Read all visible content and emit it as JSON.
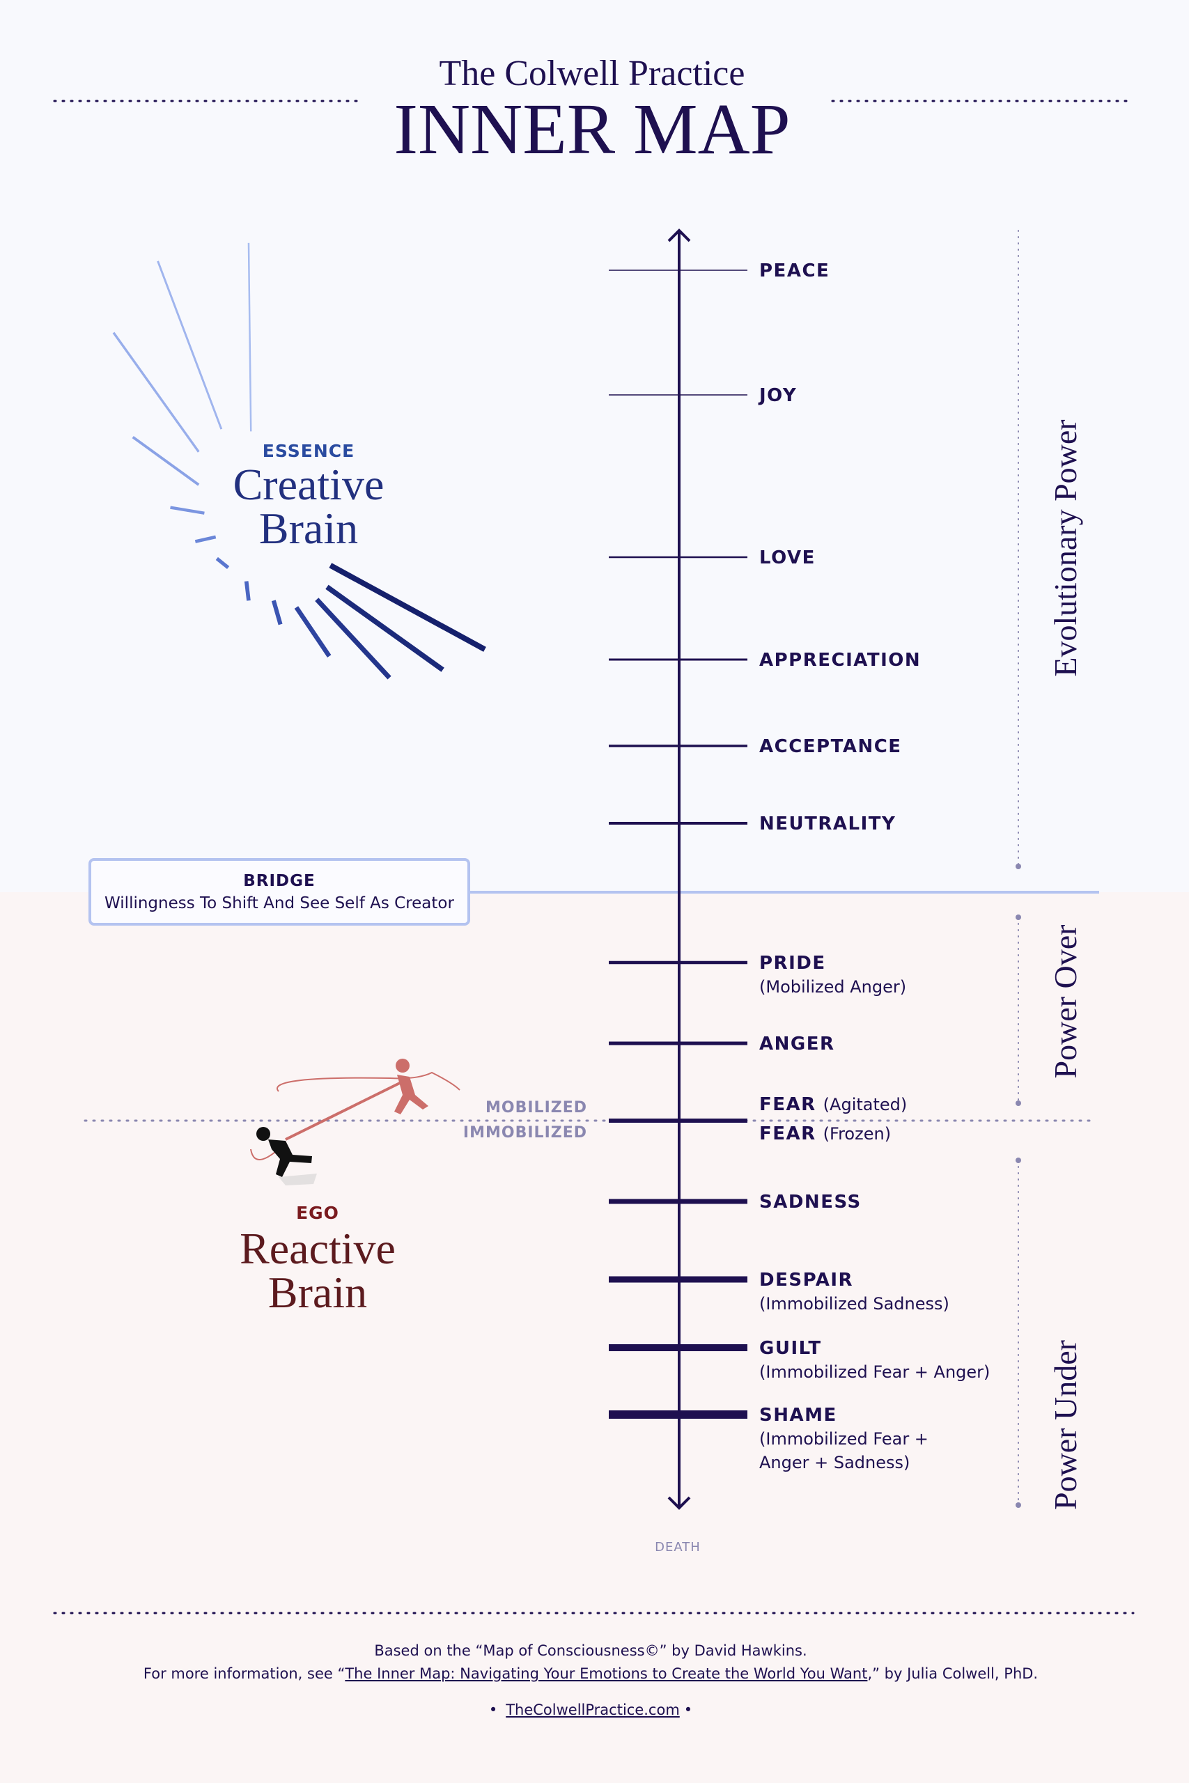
{
  "header": {
    "subtitle": "The Colwell Practice",
    "title": "INNER MAP"
  },
  "essence": {
    "label": "ESSENCE",
    "title_lines": [
      "Creative",
      "Brain"
    ]
  },
  "bridge": {
    "label": "BRIDGE",
    "text": "Willingness To Shift And See Self As Creator"
  },
  "ego": {
    "label": "EGO",
    "title_lines": [
      "Reactive",
      "Brain"
    ]
  },
  "levels": [
    {
      "name": "PEACE"
    },
    {
      "name": "JOY"
    },
    {
      "name": "LOVE"
    },
    {
      "name": "APPRECIATION"
    },
    {
      "name": "ACCEPTANCE"
    },
    {
      "name": "NEUTRALITY"
    },
    {
      "name": "PRIDE",
      "note_lines": [
        "(Mobilized Anger)"
      ]
    },
    {
      "name": "ANGER"
    },
    {
      "name": "FEAR",
      "note_lines": [
        "(Agitated)"
      ]
    },
    {
      "name": "FEAR",
      "note_lines": [
        "(Frozen)"
      ]
    },
    {
      "name": "SADNESS"
    },
    {
      "name": "DESPAIR",
      "note_lines": [
        "(Immobilized Sadness)"
      ]
    },
    {
      "name": "GUILT",
      "note_lines": [
        "(Immobilized Fear + Anger)"
      ]
    },
    {
      "name": "SHAME",
      "note_lines": [
        "(Immobilized Fear +",
        "Anger + Sadness)"
      ]
    }
  ],
  "threshold": {
    "above": "MOBILIZED",
    "below": "IMMOBILIZED"
  },
  "axis_end": "DEATH",
  "zones": [
    "Evolutionary Power",
    "Power Over",
    "Power Under"
  ],
  "footer": {
    "line1": "Based on the “Map of Consciousness©” by David Hawkins.",
    "line2": {
      "prefix": "For more information, see “",
      "link": "The Inner Map: Navigating Your Emotions to Create the World You Want",
      "suffix": ",” by Julia Colwell, PhD."
    },
    "line3": {
      "bullet_left": "•",
      "link": "TheColwellPractice.com",
      "bullet_right": "•"
    }
  }
}
